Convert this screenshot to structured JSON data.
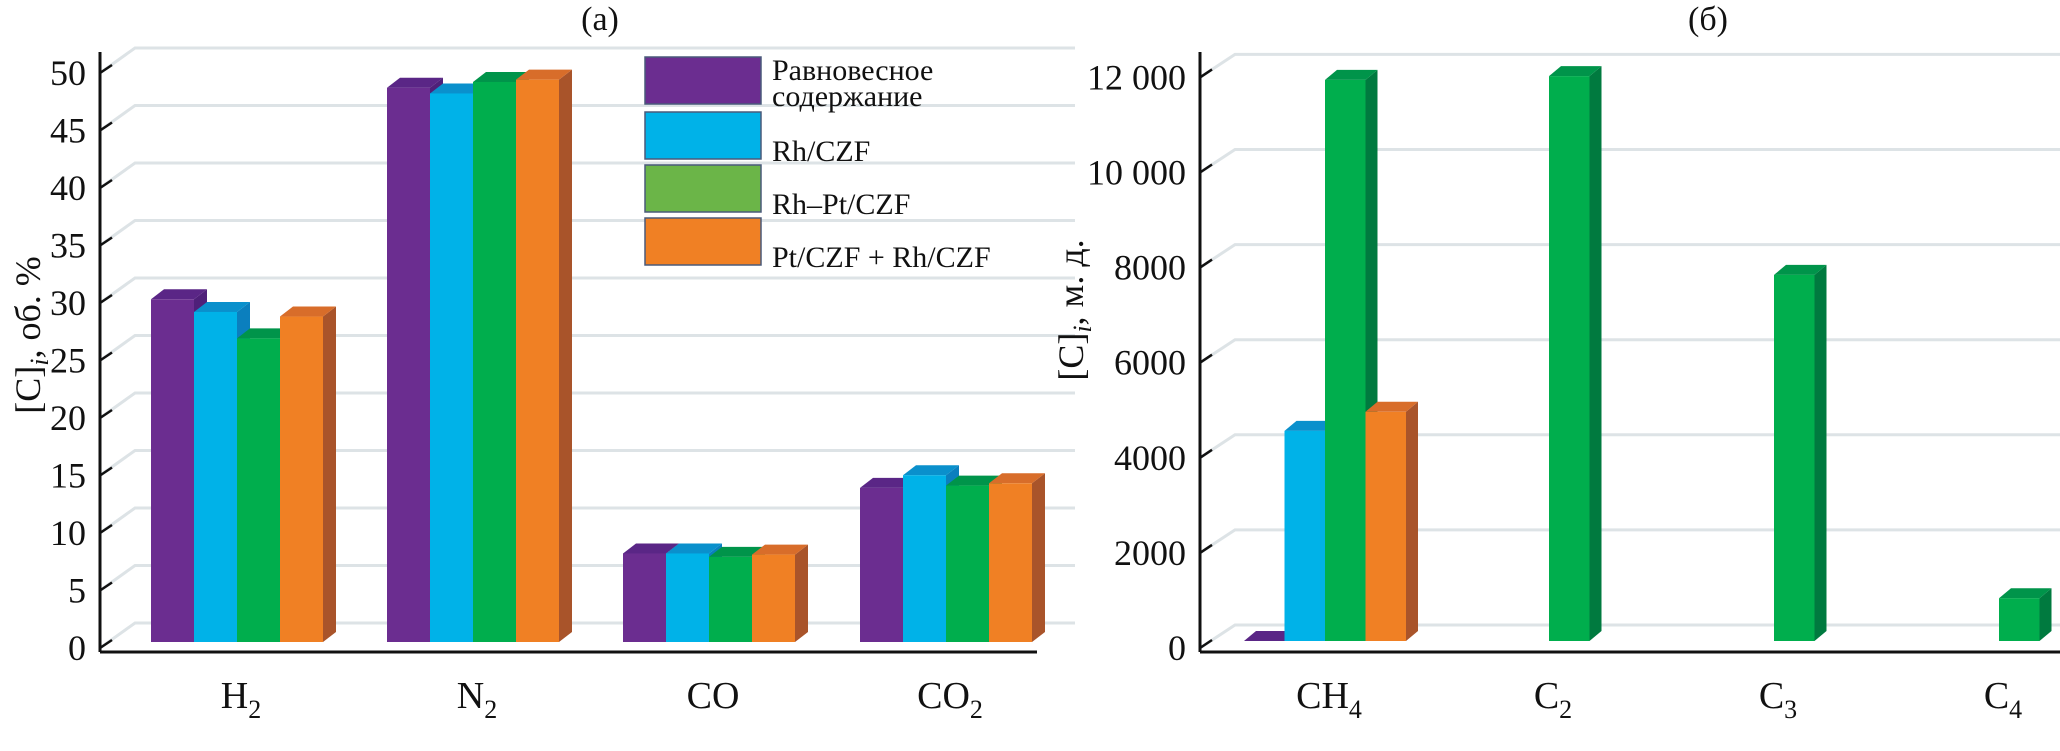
{
  "chart_data": [
    {
      "panel": "(a)",
      "type": "bar",
      "style": "3d-clustered-column",
      "title": "(a)",
      "xlabel": "",
      "ylabel": "[C]_i, об. %",
      "ylabel_parts": {
        "main": "[C]",
        "sub": "i",
        "rest": ", об. %"
      },
      "ylim": [
        0,
        50
      ],
      "yticks": [
        0,
        5,
        10,
        15,
        20,
        25,
        30,
        35,
        40,
        45,
        50
      ],
      "ytick_labels": [
        "0",
        "5",
        "10",
        "15",
        "20",
        "25",
        "30",
        "35",
        "40",
        "45",
        "50"
      ],
      "grid": true,
      "categories": [
        "H2",
        "N2",
        "CO",
        "CO2"
      ],
      "category_labels": [
        {
          "main": "H",
          "sub": "2"
        },
        {
          "main": "N",
          "sub": "2"
        },
        {
          "main": "CO",
          "sub": ""
        },
        {
          "main": "CO",
          "sub": "2"
        }
      ],
      "series": [
        {
          "name": "Равновесное содержание",
          "values": [
            29.8,
            48.2,
            7.7,
            13.4
          ]
        },
        {
          "name": "Rh/CZF",
          "values": [
            28.7,
            47.7,
            7.7,
            14.5
          ]
        },
        {
          "name": "Rh–Pt/CZF",
          "values": [
            26.4,
            48.7,
            7.4,
            13.6
          ]
        },
        {
          "name": "Pt/CZF + Rh/CZF",
          "values": [
            28.3,
            48.9,
            7.6,
            13.8
          ]
        }
      ],
      "legend": {
        "placement": "top-right",
        "entries": [
          {
            "lines": [
              "Равновесное",
              "содержание"
            ]
          },
          {
            "lines": [
              "Rh/CZF"
            ]
          },
          {
            "lines": [
              "Rh–Pt/CZF"
            ]
          },
          {
            "lines": [
              "Pt/CZF + Rh/CZF"
            ]
          }
        ]
      }
    },
    {
      "panel": "(б)",
      "type": "bar",
      "style": "3d-clustered-column",
      "title": "(б)",
      "xlabel": "",
      "ylabel": "[C]_i, м. д.",
      "ylabel_parts": {
        "main": "[C]",
        "sub": "i",
        "rest": ", м. д."
      },
      "ylim": [
        0,
        12000
      ],
      "yticks": [
        0,
        2000,
        4000,
        6000,
        8000,
        10000,
        12000
      ],
      "ytick_labels": [
        "0",
        "2000",
        "4000",
        "6000",
        "8000",
        "10 000",
        "12 000"
      ],
      "grid": true,
      "categories": [
        "CH4",
        "C2",
        "C3",
        "C4"
      ],
      "category_labels": [
        {
          "main": "CH",
          "sub": "4"
        },
        {
          "main": "C",
          "sub": "2"
        },
        {
          "main": "C",
          "sub": "3"
        },
        {
          "main": "C",
          "sub": "4"
        }
      ],
      "series": [
        {
          "name": "Равновесное содержание",
          "values": [
            0,
            null,
            null,
            null
          ]
        },
        {
          "name": "Rh/CZF",
          "values": [
            4420,
            null,
            null,
            null
          ]
        },
        {
          "name": "Rh–Pt/CZF",
          "values": [
            11800,
            11880,
            7700,
            900
          ]
        },
        {
          "name": "Pt/CZF + Rh/CZF",
          "values": [
            4820,
            null,
            null,
            null
          ]
        }
      ]
    }
  ],
  "colors": {
    "series": [
      {
        "front": "#6b2d90",
        "top": "#5a2686",
        "side": "#4f2079",
        "legend": "#6b2d90"
      },
      {
        "front": "#00b2e8",
        "top": "#0a90cc",
        "side": "#0b7fbe",
        "legend": "#00b2e8"
      },
      {
        "front": "#00ae4d",
        "top": "#00944a",
        "side": "#007a3f",
        "legend": "#6bb548"
      },
      {
        "front": "#f08024",
        "top": "#d86d2a",
        "side": "#a9542a",
        "legend": "#f08024"
      }
    ],
    "grid": "#dde3e6",
    "axis": "#111111"
  }
}
